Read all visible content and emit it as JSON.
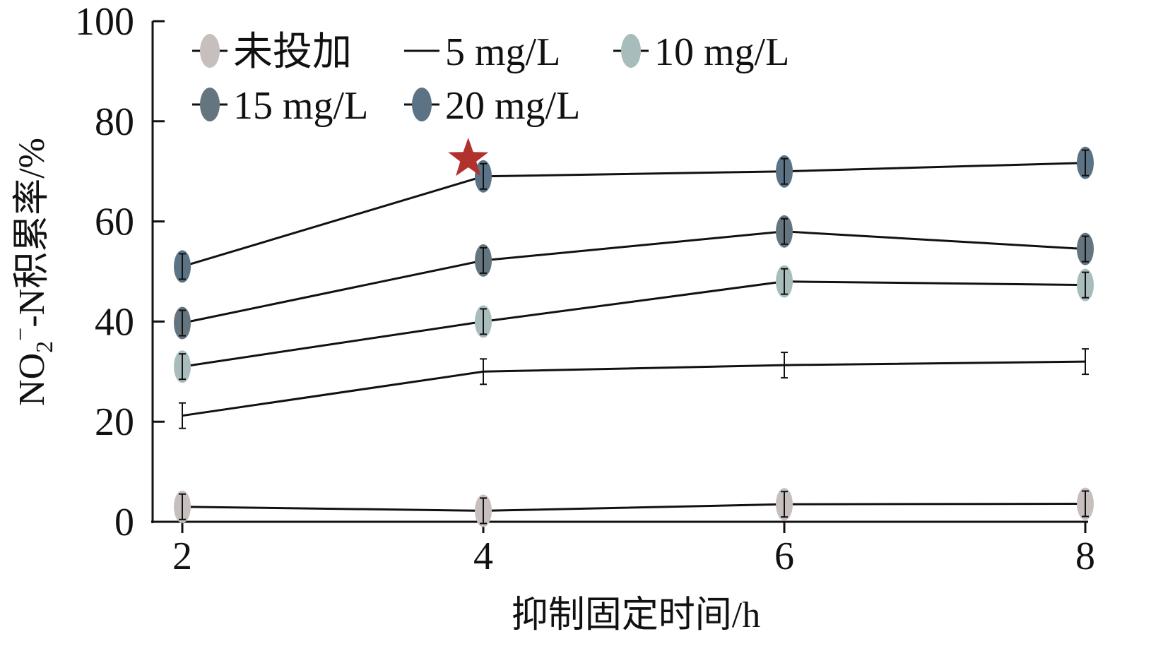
{
  "chart_data": {
    "type": "line",
    "title": "",
    "xlabel": "抑制固定时间/h",
    "ylabel": {
      "prefix": "NO",
      "sub": "2",
      "sup": "−",
      "suffix": "-N积累率/%"
    },
    "x": [
      2,
      4,
      6,
      8
    ],
    "xticks": [
      "2",
      "4",
      "6",
      "8"
    ],
    "xlim": [
      2,
      8
    ],
    "ylim": [
      0,
      100
    ],
    "yticks": [
      "0",
      "20",
      "40",
      "60",
      "80",
      "100"
    ],
    "grid": false,
    "legend_position": "top-left",
    "series": [
      {
        "name": "未投加",
        "values": [
          3.0,
          2.2,
          3.5,
          3.6
        ],
        "color": "#c6bfbd",
        "marker": true
      },
      {
        "name": "5 mg/L",
        "values": [
          21.2,
          30.0,
          31.3,
          32.0
        ],
        "color": "#111111",
        "marker": false
      },
      {
        "name": "10 mg/L",
        "values": [
          31.0,
          40.0,
          48.0,
          47.3
        ],
        "color": "#a9bcbc",
        "marker": true
      },
      {
        "name": "15 mg/L",
        "values": [
          39.7,
          52.2,
          58.0,
          54.5
        ],
        "color": "#65757f",
        "marker": true
      },
      {
        "name": "20 mg/L",
        "values": [
          51.0,
          69.0,
          70.0,
          71.7
        ],
        "color": "#5b7385",
        "marker": true
      }
    ],
    "annotations": [
      {
        "type": "star",
        "x": 3.9,
        "y": 72.5,
        "color": "#b1312c"
      }
    ]
  }
}
